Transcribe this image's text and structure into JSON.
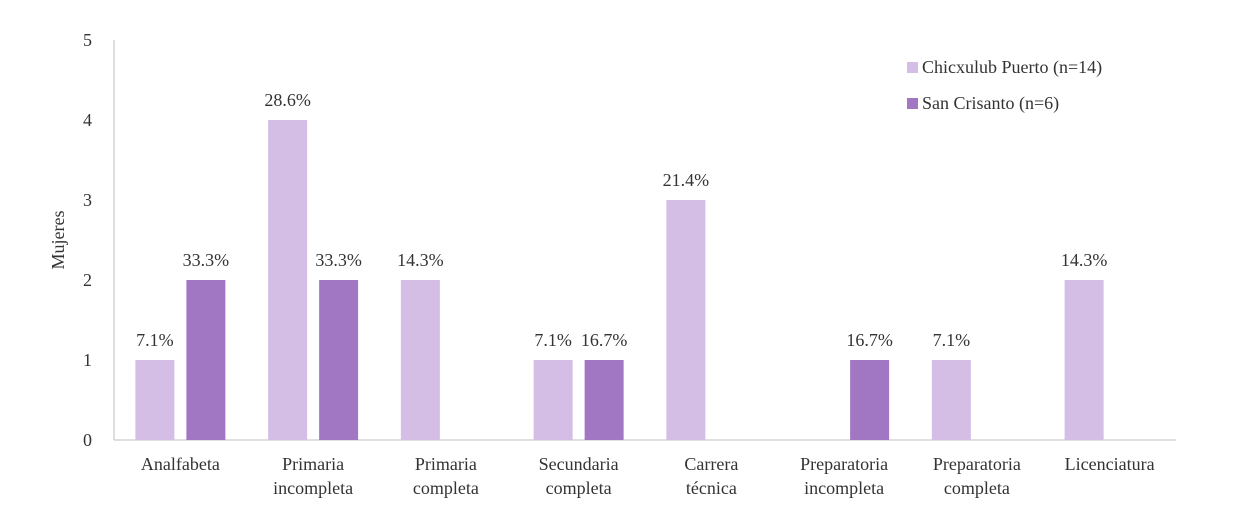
{
  "chart_data": {
    "type": "bar",
    "title": "",
    "xlabel": "",
    "ylabel": "Mujeres",
    "ylim": [
      0,
      5
    ],
    "yticks": [
      "0",
      "1",
      "2",
      "3",
      "4",
      "5"
    ],
    "grid": false,
    "legend_position": "top-right",
    "categories": [
      [
        "Analfabeta"
      ],
      [
        "Primaria",
        "incompleta"
      ],
      [
        "Primaria",
        "completa"
      ],
      [
        "Secundaria",
        "completa"
      ],
      [
        "Carrera",
        "técnica"
      ],
      [
        "Preparatoria",
        "incompleta"
      ],
      [
        "Preparatoria",
        "completa"
      ],
      [
        "Licenciatura"
      ]
    ],
    "series": [
      {
        "name": "Chicxulub Puerto (n=14)",
        "color": "#D4BEE6",
        "values": [
          1,
          4,
          2,
          1,
          3,
          0,
          1,
          2
        ],
        "labels": [
          "7.1%",
          "28.6%",
          "14.3%",
          "7.1%",
          "21.4%",
          "",
          "7.1%",
          "14.3%"
        ]
      },
      {
        "name": "San Crisanto (n=6)",
        "color": "#A177C3",
        "values": [
          2,
          2,
          0,
          1,
          0,
          1,
          0,
          0
        ],
        "labels": [
          "33.3%",
          "33.3%",
          "",
          "16.7%",
          "",
          "16.7%",
          "",
          ""
        ]
      }
    ]
  }
}
